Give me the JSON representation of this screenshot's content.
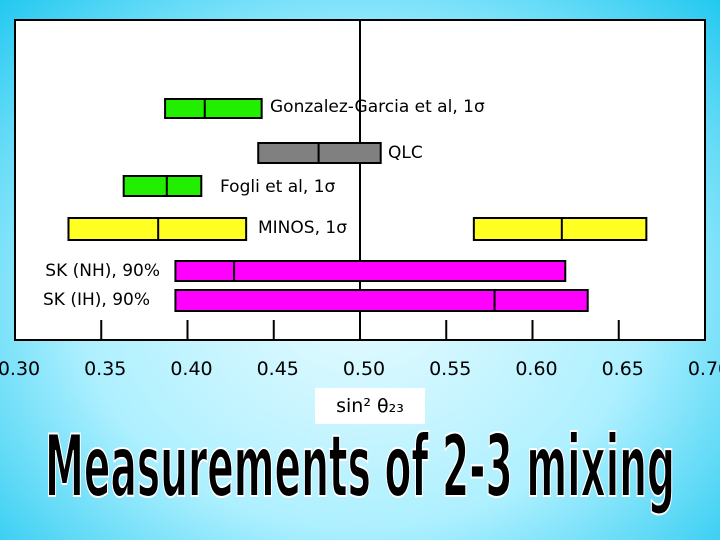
{
  "chart_data": {
    "type": "range",
    "title": "Measurements of 2-3 mixing",
    "xlabel": "sin² θ₂₃",
    "xlim": [
      0.3,
      0.7
    ],
    "xticks": [
      {
        "value": 0.3,
        "label": "0.30"
      },
      0.35,
      {
        "value": 0.4,
        "label": "0.40"
      },
      0.45,
      {
        "value": 0.5,
        "label": "0.50"
      },
      0.55,
      {
        "value": 0.6,
        "label": "0.60"
      },
      0.65,
      {
        "value": 0.7,
        "label": "0.70"
      }
    ],
    "reference": 0.5,
    "series": [
      {
        "name": "Gonzalez-Garcia et al, 1σ",
        "color": "#22ee00",
        "ranges": [
          {
            "low": 0.387,
            "best": 0.41,
            "high": 0.443
          }
        ]
      },
      {
        "name": "QLC",
        "color": "#808080",
        "ranges": [
          {
            "low": 0.441,
            "best": 0.476,
            "high": 0.512
          }
        ]
      },
      {
        "name": "Fogli et al, 1σ",
        "color": "#22ee00",
        "ranges": [
          {
            "low": 0.363,
            "best": 0.388,
            "high": 0.408
          }
        ]
      },
      {
        "name": "MINOS, 1σ",
        "color": "#ffff22",
        "ranges": [
          {
            "low": 0.331,
            "best": 0.383,
            "high": 0.434
          },
          {
            "low": 0.566,
            "best": 0.617,
            "high": 0.666
          }
        ]
      },
      {
        "name": "SK (NH), 90%",
        "color": "#ff00ff",
        "ranges": [
          {
            "low": 0.393,
            "best": 0.427,
            "high": 0.619
          }
        ]
      },
      {
        "name": "SK (IH), 90%",
        "color": "#ff00ff",
        "ranges": [
          {
            "low": 0.393,
            "best": 0.578,
            "high": 0.632
          }
        ]
      }
    ]
  }
}
